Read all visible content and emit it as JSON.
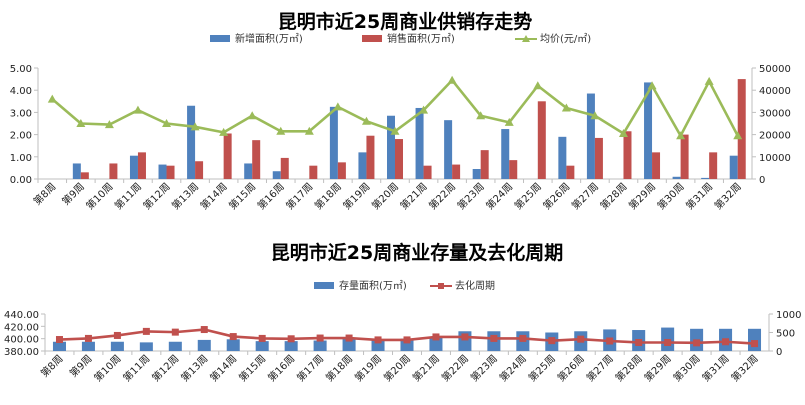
{
  "chart_data": [
    {
      "type": "bar",
      "title": "昆明市近25周商业供销存走势",
      "categories": [
        "第8周",
        "第9周",
        "第10周",
        "第11周",
        "第12周",
        "第13周",
        "第14周",
        "第15周",
        "第16周",
        "第17周",
        "第18周",
        "第19周",
        "第20周",
        "第21周",
        "第22周",
        "第23周",
        "第24周",
        "第25周",
        "第26周",
        "第27周",
        "第28周",
        "第29周",
        "第30周",
        "第31周",
        "第32周"
      ],
      "series": [
        {
          "name": "新增面积(万㎡)",
          "kind": "bar",
          "axis": "left",
          "color": "#4f81bd",
          "values": [
            0,
            0.7,
            0,
            1.05,
            0.65,
            3.3,
            0,
            0.7,
            0.35,
            0,
            3.25,
            1.2,
            2.85,
            3.2,
            2.65,
            0.45,
            2.25,
            0,
            1.9,
            3.85,
            0,
            4.35,
            0.1,
            0.05,
            1.05
          ]
        },
        {
          "name": "销售面积(万㎡)",
          "kind": "bar",
          "axis": "left",
          "color": "#c0504d",
          "values": [
            0,
            0.3,
            0.7,
            1.2,
            0.6,
            0.8,
            2.05,
            1.75,
            0.95,
            0.6,
            0.75,
            1.95,
            1.8,
            0.6,
            0.65,
            1.3,
            0.85,
            3.5,
            0.6,
            1.85,
            2.15,
            1.2,
            2.0,
            1.2,
            4.5
          ]
        },
        {
          "name": "均价(元/㎡)",
          "kind": "line",
          "axis": "right",
          "color": "#9bbb59",
          "values": [
            36000,
            25000,
            24500,
            31000,
            25000,
            23500,
            21000,
            28500,
            21500,
            21500,
            32500,
            26000,
            21500,
            31000,
            44500,
            28500,
            25500,
            42000,
            32000,
            28500,
            20500,
            42000,
            19500,
            44000,
            19500
          ]
        }
      ],
      "ylim": [
        0,
        5
      ],
      "yticks": [
        "5.00",
        "4.00",
        "3.00",
        "2.00",
        "1.00",
        "0.00"
      ],
      "y2lim": [
        0,
        50000
      ],
      "y2ticks": [
        "50000",
        "40000",
        "30000",
        "20000",
        "10000",
        "0"
      ],
      "legend_position": "top"
    },
    {
      "type": "bar",
      "title": "昆明市近25周商业存量及去化周期",
      "categories": [
        "第8周",
        "第9周",
        "第10周",
        "第11周",
        "第12周",
        "第13周",
        "第14周",
        "第15周",
        "第16周",
        "第17周",
        "第18周",
        "第19周",
        "第20周",
        "第21周",
        "第22周",
        "第23周",
        "第24周",
        "第25周",
        "第26周",
        "第27周",
        "第28周",
        "第29周",
        "第30周",
        "第31周",
        "第32周"
      ],
      "series": [
        {
          "name": "存量面积(万㎡)",
          "kind": "bar",
          "axis": "left",
          "color": "#4f81bd",
          "values": [
            395,
            395,
            395,
            394,
            395,
            398,
            399,
            396,
            396,
            397,
            401,
            399,
            400,
            403,
            412,
            412,
            412,
            410,
            412,
            415,
            414,
            418,
            416,
            416,
            416
          ]
        },
        {
          "name": "去化周期",
          "kind": "line",
          "axis": "right",
          "color": "#c0504d",
          "values": [
            310,
            340,
            420,
            530,
            510,
            580,
            390,
            340,
            330,
            350,
            350,
            300,
            300,
            380,
            380,
            340,
            340,
            280,
            320,
            270,
            230,
            230,
            220,
            250,
            200
          ]
        }
      ],
      "ylim": [
        380,
        440
      ],
      "yticks": [
        "440.00",
        "420.00",
        "400.00",
        "380.00"
      ],
      "y2lim": [
        0,
        1000
      ],
      "y2ticks": [
        "1000",
        "500",
        "0"
      ],
      "legend_position": "top"
    }
  ]
}
